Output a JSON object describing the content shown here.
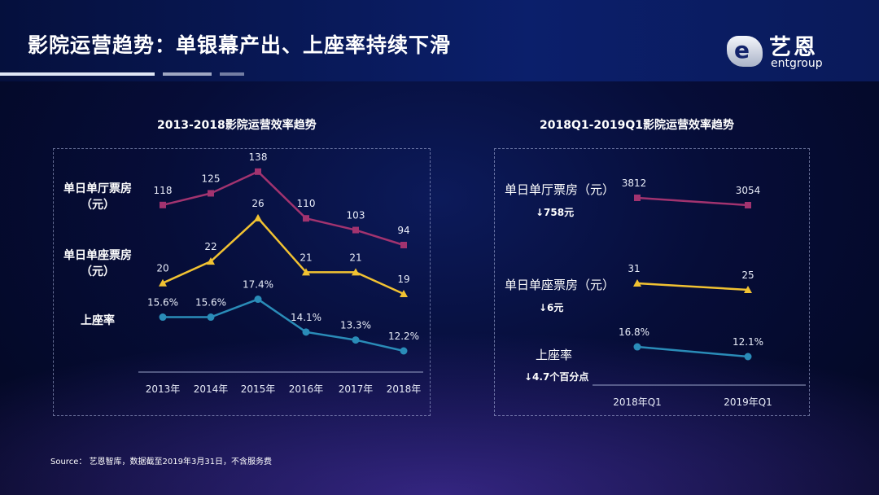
{
  "title": "影院运营趋势：单银幕产出、上座率持续下滑",
  "logo": {
    "cn": "艺恩",
    "en": "entgroup",
    "mark": "e"
  },
  "source": "Source： 艺恩智库，数据截至2019年3月31日，不含服务费",
  "colors": {
    "magenta": "#a2336f",
    "yellow": "#f1c232",
    "blue": "#2a8cb8"
  },
  "chart_data": [
    {
      "type": "line",
      "title": "2013-2018影院运营效率趋势",
      "categories": [
        "2013年",
        "2014年",
        "2015年",
        "2016年",
        "2017年",
        "2018年"
      ],
      "series": [
        {
          "name": "单日单厅票房（元）",
          "name_lines": [
            "单日单厅票房",
            "（元）"
          ],
          "values": [
            118,
            125,
            138,
            110,
            103,
            94
          ],
          "labels": [
            "118",
            "125",
            "138",
            "110",
            "103",
            "94"
          ],
          "marker": "square",
          "color": "#a2336f"
        },
        {
          "name": "单日单座票房（元）",
          "name_lines": [
            "单日单座票房",
            "（元）"
          ],
          "values": [
            20,
            22,
            26,
            21,
            21,
            19
          ],
          "labels": [
            "20",
            "22",
            "26",
            "21",
            "21",
            "19"
          ],
          "marker": "triangle",
          "color": "#f1c232"
        },
        {
          "name": "上座率",
          "name_lines": [
            "上座率"
          ],
          "values": [
            15.6,
            15.6,
            17.4,
            14.1,
            13.3,
            12.2
          ],
          "labels": [
            "15.6%",
            "15.6%",
            "17.4%",
            "14.1%",
            "13.3%",
            "12.2%"
          ],
          "marker": "circle",
          "color": "#2a8cb8"
        }
      ]
    },
    {
      "type": "line",
      "title": "2018Q1-2019Q1影院运营效率趋势",
      "categories": [
        "2018年Q1",
        "2019年Q1"
      ],
      "series": [
        {
          "name": "单日单厅票房（元）",
          "change": "↓758元",
          "values": [
            3812,
            3054
          ],
          "labels": [
            "3812",
            "3054"
          ],
          "marker": "square",
          "color": "#a2336f"
        },
        {
          "name": "单日单座票房（元）",
          "change": "↓6元",
          "values": [
            31,
            25
          ],
          "labels": [
            "31",
            "25"
          ],
          "marker": "triangle",
          "color": "#f1c232"
        },
        {
          "name": "上座率",
          "change": "↓4.7个百分点",
          "values": [
            16.8,
            12.1
          ],
          "labels": [
            "16.8%",
            "12.1%"
          ],
          "marker": "circle",
          "color": "#2a8cb8"
        }
      ]
    }
  ]
}
